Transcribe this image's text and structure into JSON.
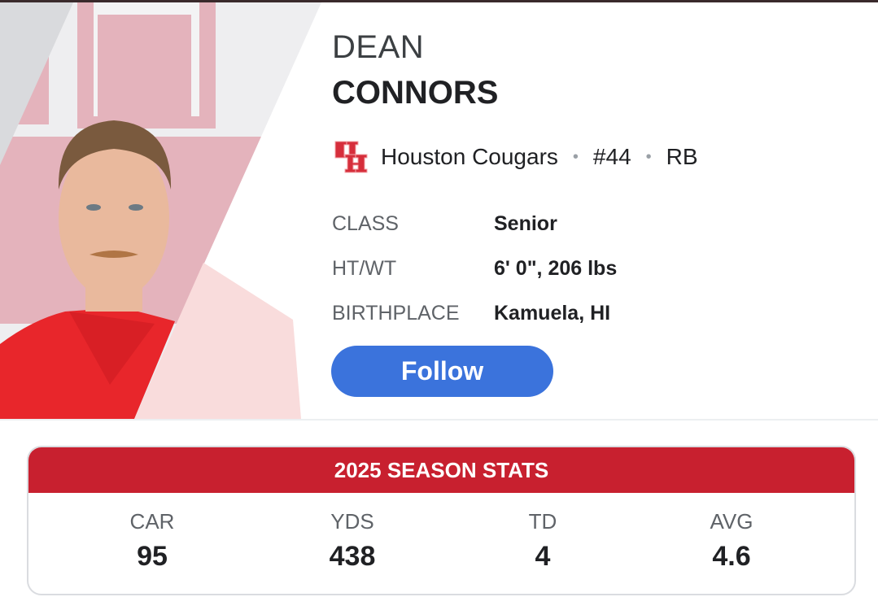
{
  "player": {
    "first_name": "DEAN",
    "last_name": "CONNORS",
    "team": "Houston Cougars",
    "number": "#44",
    "position": "RB",
    "separator": "•"
  },
  "details": [
    {
      "label": "CLASS",
      "value": "Senior"
    },
    {
      "label": "HT/WT",
      "value": "6' 0\", 206 lbs"
    },
    {
      "label": "BIRTHPLACE",
      "value": "Kamuela, HI"
    }
  ],
  "follow_label": "Follow",
  "stats": {
    "title": "2025 SEASON STATS",
    "items": [
      {
        "label": "CAR",
        "value": "95"
      },
      {
        "label": "YDS",
        "value": "438"
      },
      {
        "label": "TD",
        "value": "4"
      },
      {
        "label": "AVG",
        "value": "4.6"
      }
    ]
  },
  "colors": {
    "accent": "#c8202f",
    "button": "#3b73dc"
  }
}
